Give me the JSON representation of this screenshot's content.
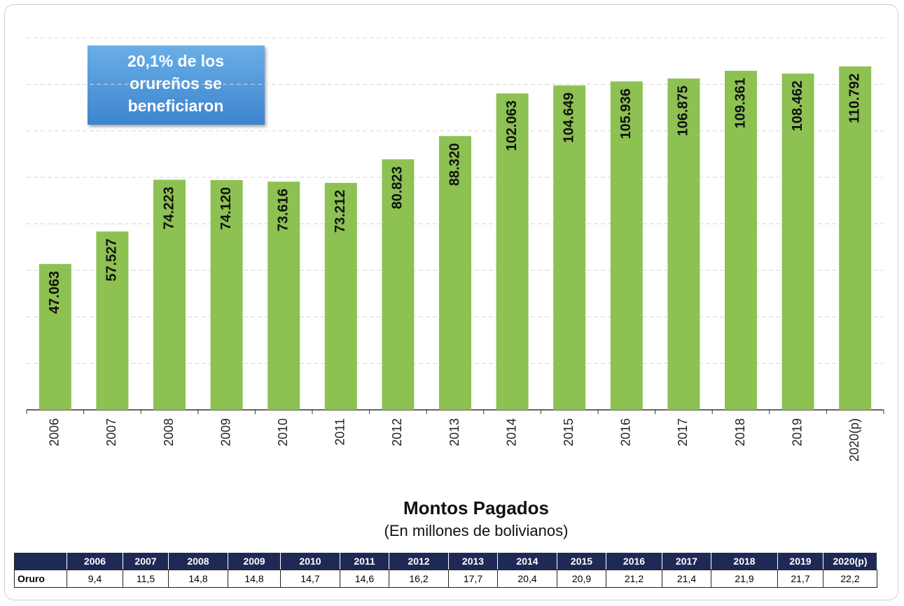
{
  "chart_data": {
    "type": "bar",
    "categories": [
      "2006",
      "2007",
      "2008",
      "2009",
      "2010",
      "2011",
      "2012",
      "2013",
      "2014",
      "2015",
      "2016",
      "2017",
      "2018",
      "2019",
      "2020(p)"
    ],
    "values": [
      47063,
      57527,
      74223,
      74120,
      73616,
      73212,
      80823,
      88320,
      102063,
      104649,
      105936,
      106875,
      109361,
      108462,
      110792
    ],
    "value_labels": [
      "47.063",
      "57.527",
      "74.223",
      "74.120",
      "73.616",
      "73.212",
      "80.823",
      "88.320",
      "102.063",
      "104.649",
      "105.936",
      "106.875",
      "109.361",
      "108.462",
      "110.792"
    ],
    "color": "#8dc152",
    "ylim": [
      0,
      120000
    ],
    "gridlines": [
      15000,
      30000,
      45000,
      60000,
      75000,
      90000,
      105000,
      120000
    ],
    "annotation": [
      "20,1% de los",
      "orureños se",
      "beneficiaron"
    ]
  },
  "table": {
    "title": "Montos Pagados",
    "subtitle": "(En millones de bolivianos)",
    "header": [
      "2006",
      "2007",
      "2008",
      "2009",
      "2010",
      "2011",
      "2012",
      "2013",
      "2014",
      "2015",
      "2016",
      "2017",
      "2018",
      "2019",
      "2020(p)"
    ],
    "rows": [
      [
        "Oruro",
        "9,4",
        "11,5",
        "14,8",
        "14,8",
        "14,7",
        "14,6",
        "16,2",
        "17,7",
        "20,4",
        "20,9",
        "21,2",
        "21,4",
        "21,9",
        "21,7",
        "22,2"
      ]
    ]
  }
}
